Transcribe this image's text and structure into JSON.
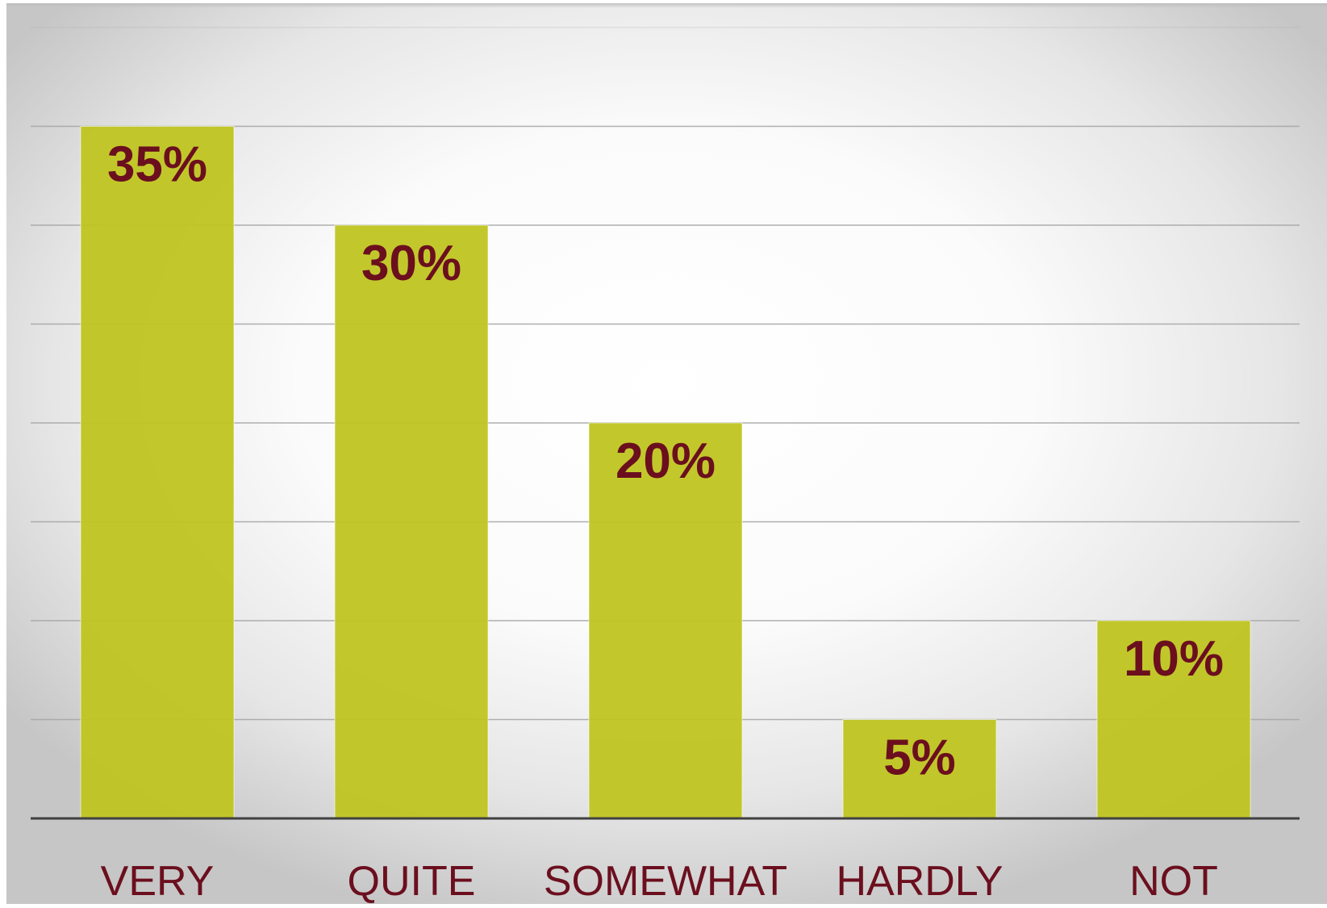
{
  "chart_data": {
    "type": "bar",
    "title": "",
    "xlabel": "",
    "ylabel": "",
    "categories": [
      "VERY",
      "QUITE",
      "SOMEWHAT",
      "HARDLY",
      "NOT"
    ],
    "values": [
      35,
      30,
      20,
      5,
      10
    ],
    "value_labels": [
      "35%",
      "30%",
      "20%",
      "5%",
      "10%"
    ],
    "ylim": [
      0,
      40
    ],
    "y_grid_step": 5,
    "grid": true,
    "legend": "none"
  },
  "colors": {
    "bar": "#bfc520",
    "label_text": "#6b0f1e",
    "gridline": "#a6a6a6",
    "axis_line": "#404040",
    "background_center": "#ffffff",
    "background_edge": "#c8c8c8"
  }
}
